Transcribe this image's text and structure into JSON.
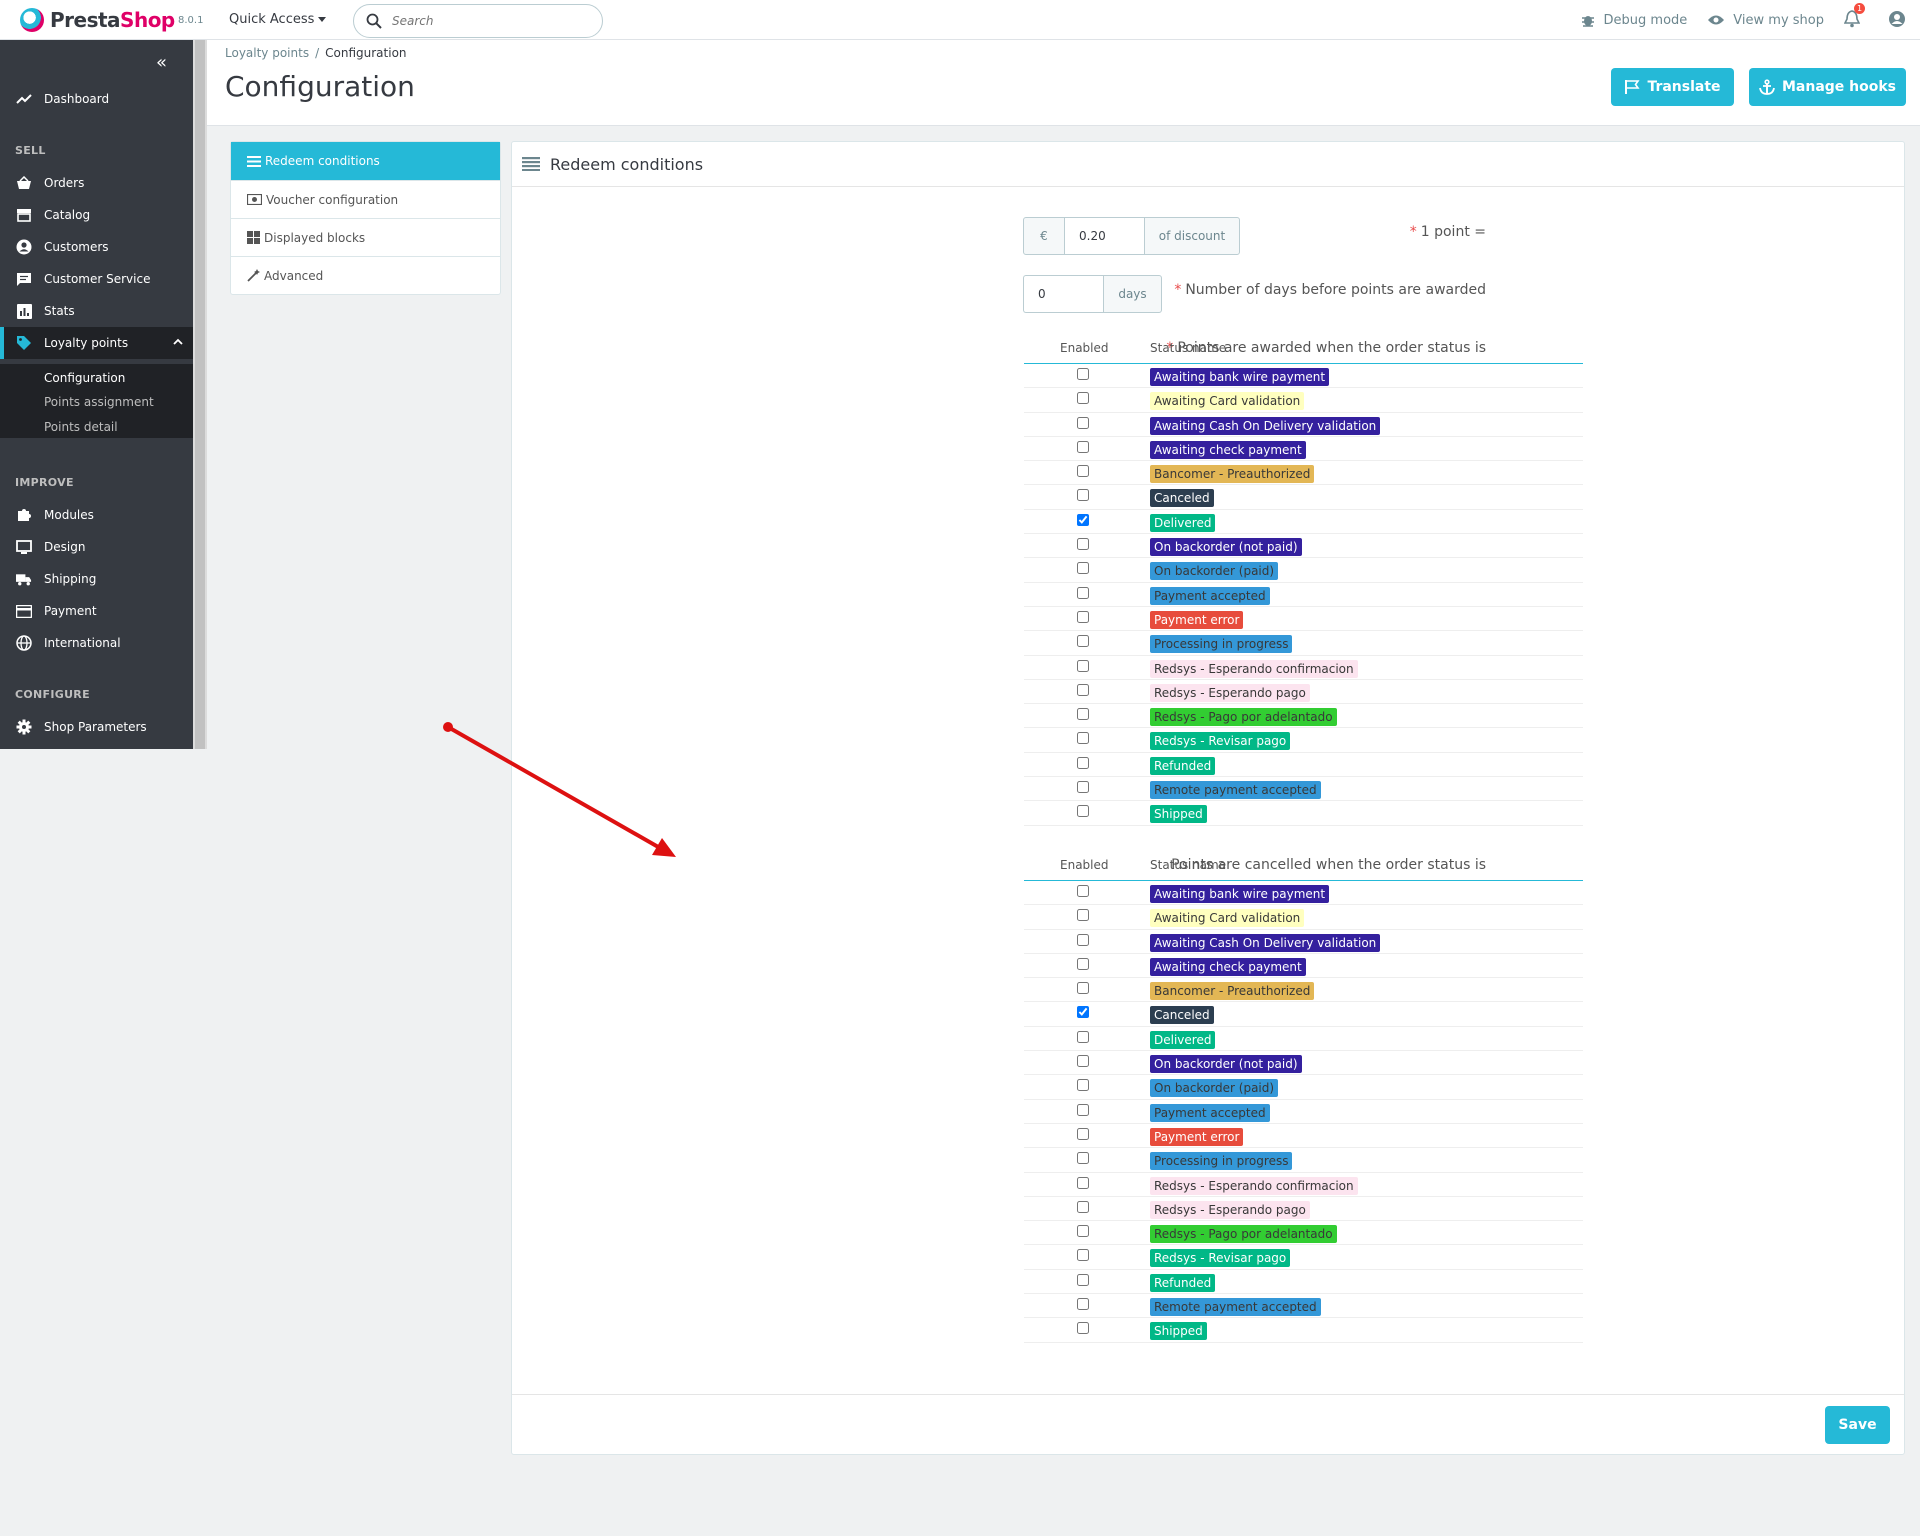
{
  "header": {
    "logo_text_a": "Presta",
    "logo_text_b": "Shop",
    "version": "8.0.1",
    "quick_access": "Quick Access",
    "search_placeholder": "Search",
    "debug_mode": "Debug mode",
    "view_shop": "View my shop",
    "notif_count": "1"
  },
  "sidebar": {
    "dashboard": "Dashboard",
    "sell": "SELL",
    "orders": "Orders",
    "catalog": "Catalog",
    "customers": "Customers",
    "customer_service": "Customer Service",
    "stats": "Stats",
    "loyalty": "Loyalty points",
    "sub": [
      "Configuration",
      "Points assignment",
      "Points detail"
    ],
    "improve": "IMPROVE",
    "modules": "Modules",
    "design": "Design",
    "shipping": "Shipping",
    "payment": "Payment",
    "international": "International",
    "configure": "CONFIGURE",
    "shop_parameters": "Shop Parameters"
  },
  "page": {
    "breadcrumb_parent": "Loyalty points",
    "breadcrumb_sep": "/",
    "breadcrumb_current": "Configuration",
    "title": "Configuration",
    "translate_btn": "Translate",
    "manage_hooks_btn": "Manage hooks"
  },
  "tabs": [
    "Redeem conditions",
    "Voucher configuration",
    "Displayed blocks",
    "Advanced"
  ],
  "panel": {
    "title": "Redeem conditions",
    "point_label": "1 point =",
    "currency": "€",
    "point_value": "0.20",
    "of_discount": "of discount",
    "days_label": "Number of days before points are awarded",
    "days_value": "0",
    "days_unit": "days",
    "awarded_label": "Points are awarded when the order status is",
    "cancelled_label": "Points are cancelled when the order status is",
    "col_enabled": "Enabled",
    "col_status": "Status name",
    "save": "Save",
    "required_mark": "*"
  },
  "statuses": [
    {
      "name": "Awaiting bank wire payment",
      "bg": "#34209e",
      "fg": "#ffffff"
    },
    {
      "name": "Awaiting Card validation",
      "bg": "#ffffbf",
      "fg": "#383838"
    },
    {
      "name": "Awaiting Cash On Delivery validation",
      "bg": "#34209e",
      "fg": "#ffffff"
    },
    {
      "name": "Awaiting check payment",
      "bg": "#34209e",
      "fg": "#ffffff"
    },
    {
      "name": "Bancomer - Preauthorized",
      "bg": "#e3b755",
      "fg": "#383838"
    },
    {
      "name": "Canceled",
      "bg": "#2c3e50",
      "fg": "#ffffff"
    },
    {
      "name": "Delivered",
      "bg": "#01b887",
      "fg": "#ffffff"
    },
    {
      "name": "On backorder (not paid)",
      "bg": "#34209e",
      "fg": "#ffffff"
    },
    {
      "name": "On backorder (paid)",
      "bg": "#3498d8",
      "fg": "#383838"
    },
    {
      "name": "Payment accepted",
      "bg": "#3498d8",
      "fg": "#383838"
    },
    {
      "name": "Payment error",
      "bg": "#e74c3c",
      "fg": "#ffffff"
    },
    {
      "name": "Processing in progress",
      "bg": "#3498d8",
      "fg": "#383838"
    },
    {
      "name": "Redsys - Esperando confirmacion",
      "bg": "#fce4ef",
      "fg": "#383838"
    },
    {
      "name": "Redsys - Esperando pago",
      "bg": "#fce4ef",
      "fg": "#383838"
    },
    {
      "name": "Redsys - Pago por adelantado",
      "bg": "#32cd32",
      "fg": "#383838"
    },
    {
      "name": "Redsys - Revisar pago",
      "bg": "#01b887",
      "fg": "#ffffff"
    },
    {
      "name": "Refunded",
      "bg": "#01b887",
      "fg": "#ffffff"
    },
    {
      "name": "Remote payment accepted",
      "bg": "#3498d8",
      "fg": "#383838"
    },
    {
      "name": "Shipped",
      "bg": "#01b887",
      "fg": "#ffffff"
    }
  ],
  "awarded_checked": [
    false,
    false,
    false,
    false,
    false,
    false,
    true,
    false,
    false,
    false,
    false,
    false,
    false,
    false,
    false,
    false,
    false,
    false,
    false
  ],
  "cancelled_checked": [
    false,
    false,
    false,
    false,
    false,
    true,
    false,
    false,
    false,
    false,
    false,
    false,
    false,
    false,
    false,
    false,
    false,
    false,
    false
  ],
  "colors": {
    "accent": "#25b9d7",
    "sidebar": "#363a41",
    "arrow": "#dd1111"
  }
}
